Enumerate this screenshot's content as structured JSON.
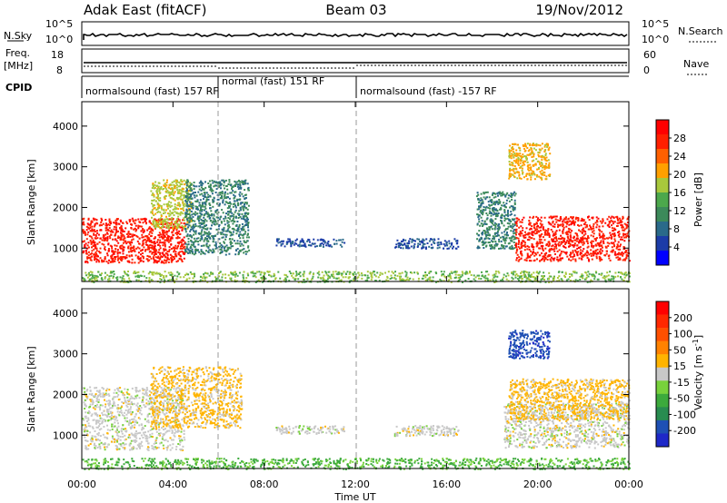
{
  "header": {
    "station": "Adak East (fitACF)",
    "beam": "Beam 03",
    "date": "19/Nov/2012"
  },
  "strips": {
    "nsky_label": "N.Sky",
    "nsearch_label": "N.Search",
    "nsky_ticks": [
      "10^5",
      "10^0"
    ],
    "freq_label_1": "Freq.",
    "freq_label_2": "[MHz]",
    "freq_ticks": [
      "18",
      "8"
    ],
    "nave_label": "Nave",
    "nave_ticks": [
      "60",
      "0"
    ],
    "cpid_label": "CPID",
    "cpid_segments": [
      {
        "label": "normalsound (fast) 157 RF",
        "start_hour": 0,
        "end_hour": 6
      },
      {
        "label": "normal (fast) 151 RF",
        "start_hour": 6,
        "end_hour": 12
      },
      {
        "label": "normalsound (fast) -157 RF",
        "start_hour": 12,
        "end_hour": 24
      }
    ]
  },
  "axes": {
    "xlabel": "Time UT",
    "x_ticks": [
      "00:00",
      "04:00",
      "08:00",
      "12:00",
      "16:00",
      "20:00",
      "00:00"
    ],
    "ylabel_text": "Slant Range",
    "ylabel_unit": "[km]",
    "y_ticks": [
      "1000",
      "2000",
      "3000",
      "4000"
    ]
  },
  "colorbars": {
    "power": {
      "label": "Power [dB]",
      "ticks": [
        "28",
        "24",
        "20",
        "16",
        "12",
        "8",
        "4"
      ],
      "colors": [
        "#0000ff",
        "#1c3ca8",
        "#2a6a8a",
        "#3c8a5a",
        "#4ca84c",
        "#a8c83c",
        "#ffa000",
        "#ff6000",
        "#ff2000",
        "#ff0000"
      ]
    },
    "velocity": {
      "label": "Velocity",
      "unit": "[m s",
      "unit_exp": "-1",
      "unit_close": "]",
      "ticks": [
        "200",
        "100",
        "50",
        "15",
        "-15",
        "-50",
        "-100",
        "-200"
      ],
      "colors": [
        "#1e28c8",
        "#1e50b4",
        "#288c50",
        "#3caa3c",
        "#78d23c",
        "#c8c8c8",
        "#ffb400",
        "#ff8200",
        "#ff5000",
        "#ff2800",
        "#ff0000"
      ]
    }
  },
  "chart_data": [
    {
      "type": "scatter",
      "title": "Power",
      "xlabel": "Time UT",
      "ylabel": "Slant Range [km]",
      "xlim": [
        0,
        24
      ],
      "ylim": [
        180,
        4600
      ],
      "colorbar": {
        "label": "Power [dB]",
        "range": [
          0,
          32
        ]
      },
      "regions": [
        {
          "x": [
            0.0,
            4.5
          ],
          "y": [
            650,
            1750
          ],
          "value": 28
        },
        {
          "x": [
            3.0,
            4.8
          ],
          "y": [
            1500,
            2700
          ],
          "value": 18
        },
        {
          "x": [
            4.5,
            7.3
          ],
          "y": [
            850,
            2700
          ],
          "value": 10
        },
        {
          "x": [
            8.5,
            11.5
          ],
          "y": [
            1050,
            1250
          ],
          "value": 6
        },
        {
          "x": [
            13.7,
            16.5
          ],
          "y": [
            1000,
            1250
          ],
          "value": 6
        },
        {
          "x": [
            17.3,
            19.0
          ],
          "y": [
            1000,
            2400
          ],
          "value": 10
        },
        {
          "x": [
            18.7,
            20.5
          ],
          "y": [
            2700,
            3600
          ],
          "value": 20
        },
        {
          "x": [
            19.0,
            24.0
          ],
          "y": [
            700,
            1800
          ],
          "value": 28
        },
        {
          "x": [
            0.0,
            24.0
          ],
          "y": [
            180,
            450
          ],
          "value": 16
        }
      ]
    },
    {
      "type": "scatter",
      "title": "Velocity",
      "xlabel": "Time UT",
      "ylabel": "Slant Range [km]",
      "xlim": [
        0,
        24
      ],
      "ylim": [
        180,
        4600
      ],
      "colorbar": {
        "label": "Velocity [m s-1]",
        "range": [
          -200,
          200
        ]
      },
      "regions": [
        {
          "x": [
            0.0,
            4.5
          ],
          "y": [
            650,
            2200
          ],
          "value": 0
        },
        {
          "x": [
            3.0,
            7.0
          ],
          "y": [
            1200,
            2700
          ],
          "value": 30
        },
        {
          "x": [
            8.5,
            11.5
          ],
          "y": [
            1050,
            1250
          ],
          "value": 0
        },
        {
          "x": [
            13.7,
            16.5
          ],
          "y": [
            1000,
            1250
          ],
          "value": 0
        },
        {
          "x": [
            18.5,
            24.0
          ],
          "y": [
            700,
            1800
          ],
          "value": 0
        },
        {
          "x": [
            18.7,
            24.0
          ],
          "y": [
            1400,
            2400
          ],
          "value": 30
        },
        {
          "x": [
            18.7,
            20.5
          ],
          "y": [
            2900,
            3600
          ],
          "value": -150
        },
        {
          "x": [
            0.0,
            24.0
          ],
          "y": [
            180,
            450
          ],
          "value": -60
        }
      ]
    }
  ]
}
